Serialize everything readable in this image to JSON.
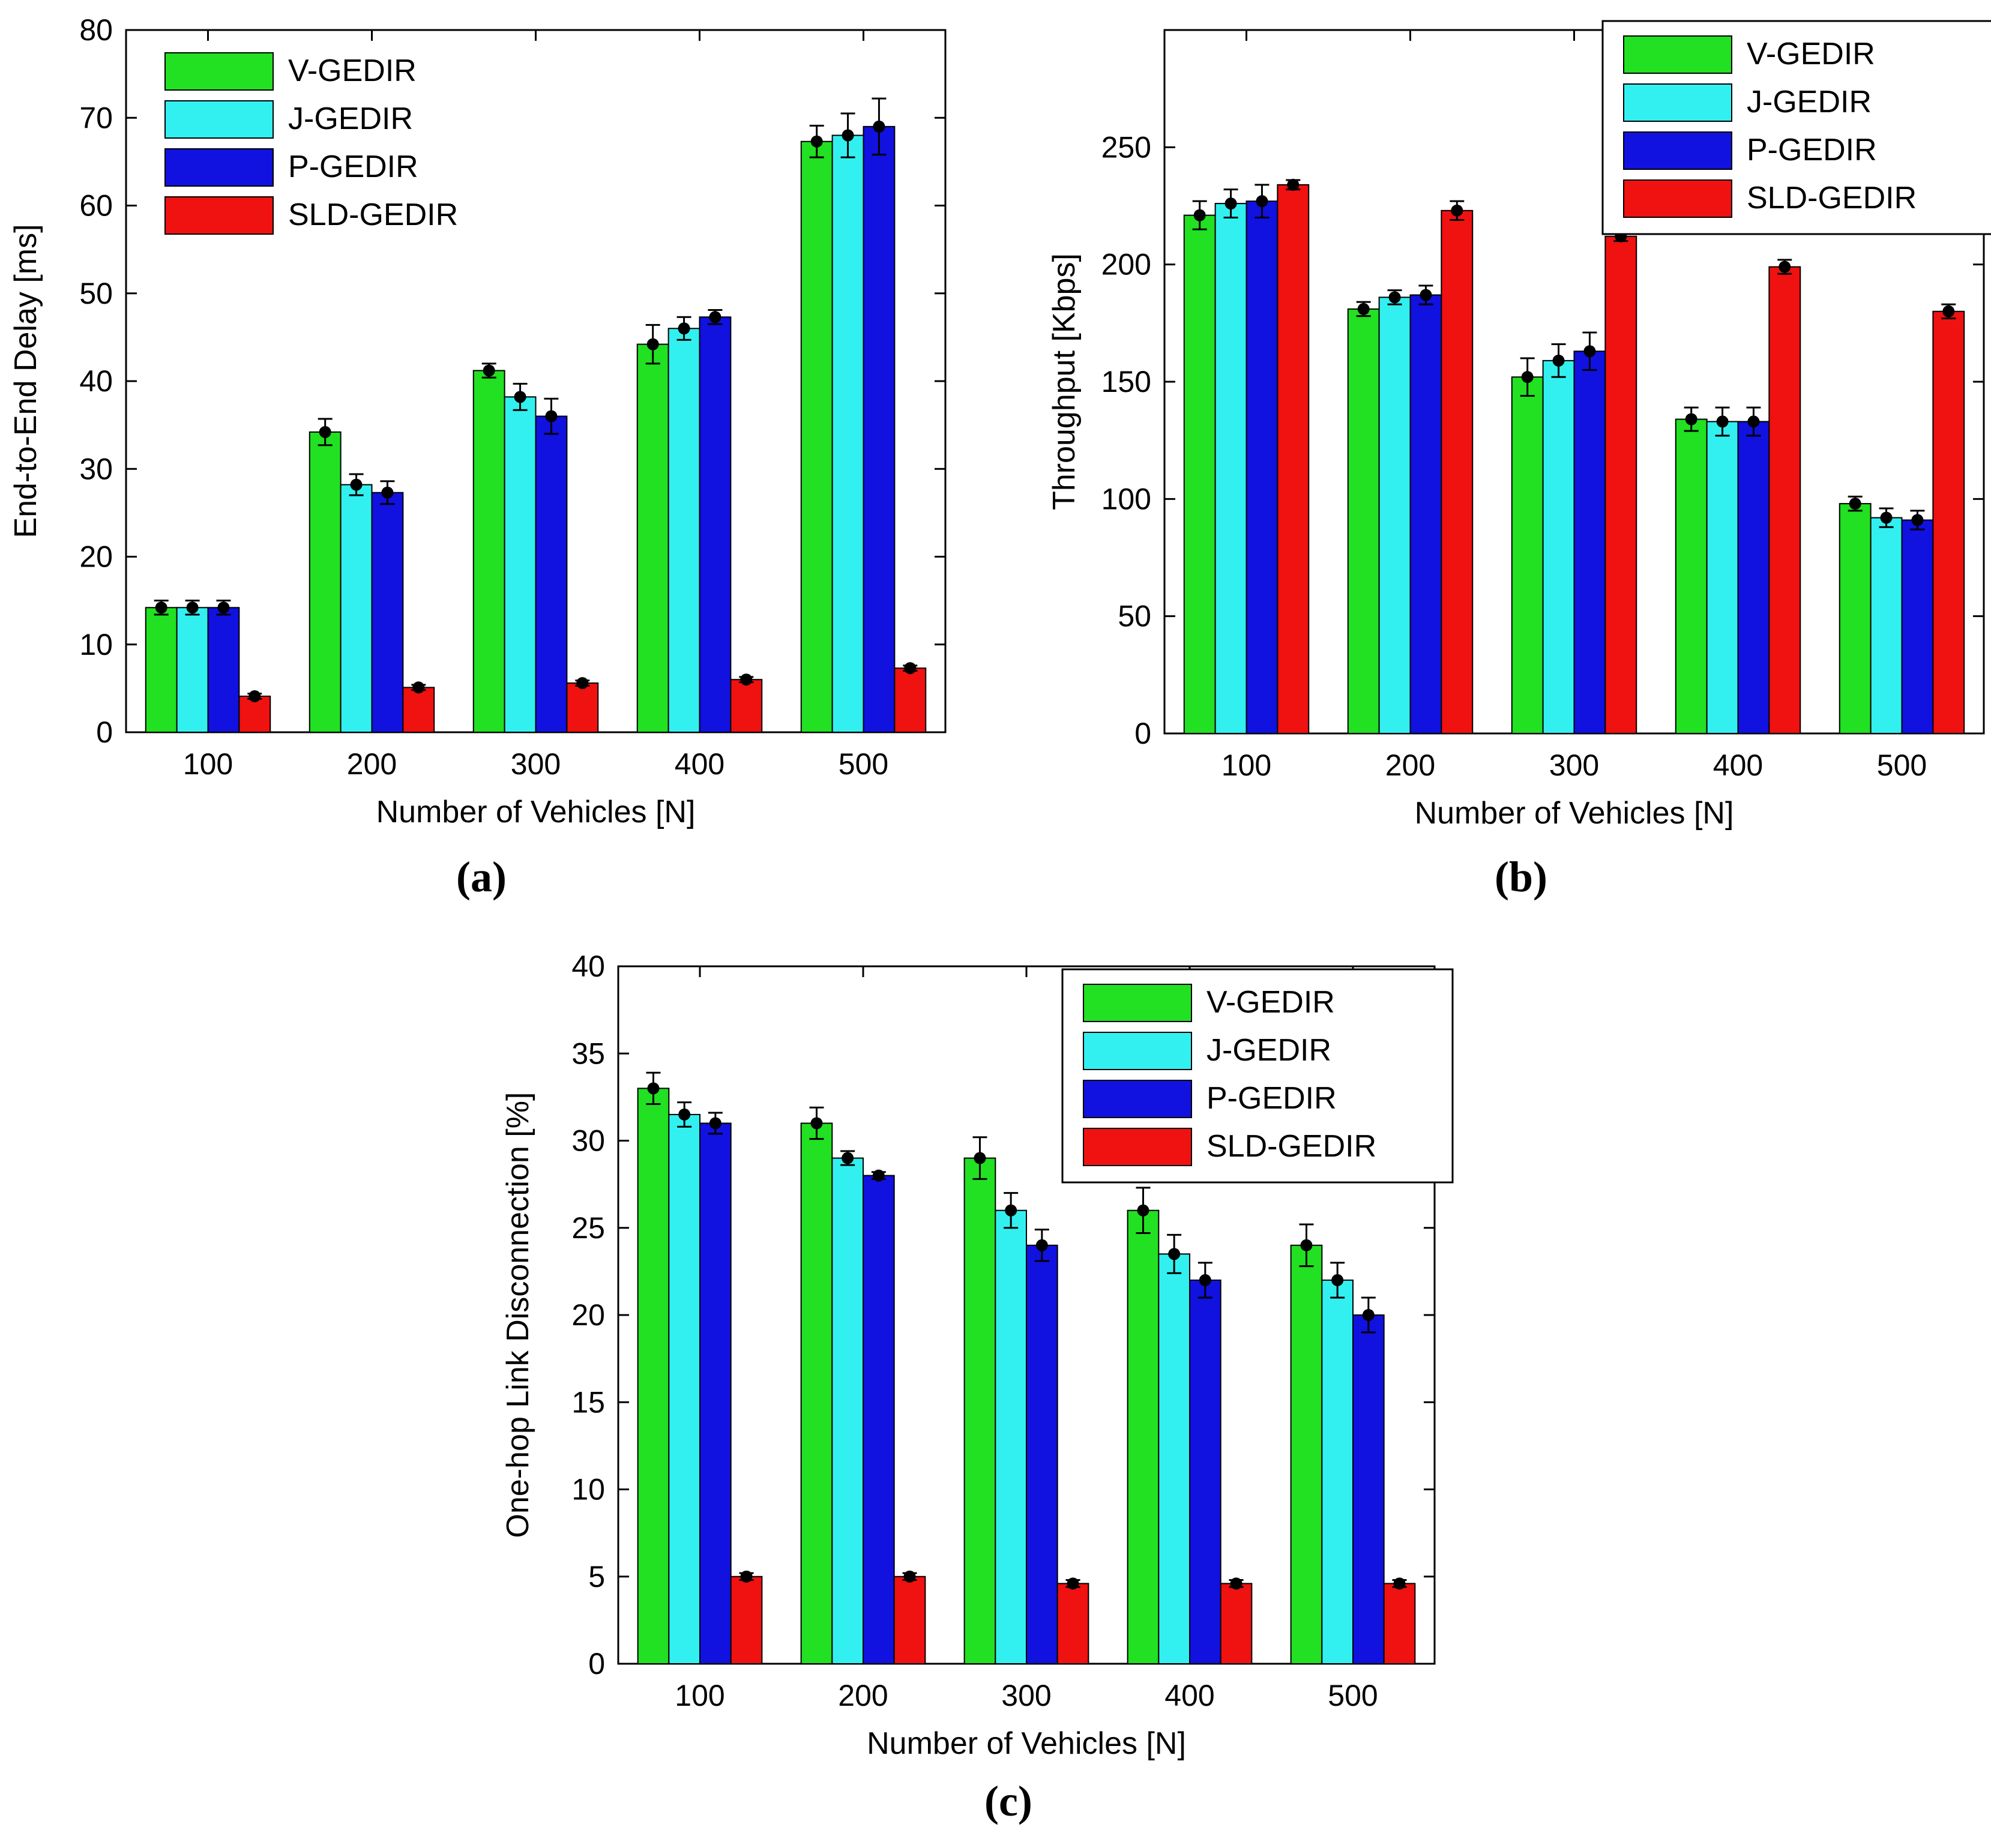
{
  "figure": {
    "captions": [
      "(a)",
      "(b)",
      "(c)"
    ]
  },
  "colors": {
    "V-GEDIR": "#22e022",
    "J-GEDIR": "#33f0f0",
    "P-GEDIR": "#1111e0",
    "SLD-GEDIR": "#f01111",
    "axis": "#000000",
    "errorbar": "#000000"
  },
  "chart_data": [
    {
      "id": "a",
      "type": "bar",
      "title": "",
      "xlabel": "Number of Vehicles [N]",
      "ylabel": "End-to-End Delay [ms]",
      "categories": [
        "100",
        "200",
        "300",
        "400",
        "500"
      ],
      "ylim": [
        0,
        80
      ],
      "yticks": [
        0,
        10,
        20,
        30,
        40,
        50,
        60,
        70,
        80
      ],
      "legend_position": "top-left",
      "series": [
        {
          "name": "V-GEDIR",
          "values": [
            14.2,
            34.2,
            41.2,
            44.2,
            67.3
          ],
          "errors": [
            0.8,
            1.5,
            0.8,
            2.2,
            1.8
          ]
        },
        {
          "name": "J-GEDIR",
          "values": [
            14.2,
            28.2,
            38.2,
            46.0,
            68.0
          ],
          "errors": [
            0.8,
            1.2,
            1.5,
            1.3,
            2.5
          ]
        },
        {
          "name": "P-GEDIR",
          "values": [
            14.2,
            27.3,
            36.0,
            47.3,
            69.0
          ],
          "errors": [
            0.8,
            1.3,
            2.0,
            0.8,
            3.2
          ]
        },
        {
          "name": "SLD-GEDIR",
          "values": [
            4.1,
            5.1,
            5.6,
            6.0,
            7.3
          ],
          "errors": [
            0.3,
            0.3,
            0.3,
            0.3,
            0.3
          ]
        }
      ]
    },
    {
      "id": "b",
      "type": "bar",
      "title": "",
      "xlabel": "Number of Vehicles [N]",
      "ylabel": "Throughput [Kbps]",
      "categories": [
        "100",
        "200",
        "300",
        "400",
        "500"
      ],
      "ylim": [
        0,
        300
      ],
      "yticks": [
        0,
        50,
        100,
        150,
        200,
        250
      ],
      "legend_position": "top-right",
      "series": [
        {
          "name": "V-GEDIR",
          "values": [
            221,
            181,
            152,
            134,
            98
          ],
          "errors": [
            6,
            3,
            8,
            5,
            3
          ]
        },
        {
          "name": "J-GEDIR",
          "values": [
            226,
            186,
            159,
            133,
            92
          ],
          "errors": [
            6,
            3,
            7,
            6,
            4
          ]
        },
        {
          "name": "P-GEDIR",
          "values": [
            227,
            187,
            163,
            133,
            91
          ],
          "errors": [
            7,
            4,
            8,
            6,
            4
          ]
        },
        {
          "name": "SLD-GEDIR",
          "values": [
            234,
            223,
            212,
            199,
            180
          ],
          "errors": [
            2,
            4,
            2,
            3,
            3
          ]
        }
      ]
    },
    {
      "id": "c",
      "type": "bar",
      "title": "",
      "xlabel": "Number of Vehicles [N]",
      "ylabel": "One-hop Link Disconnection [%]",
      "categories": [
        "100",
        "200",
        "300",
        "400",
        "500"
      ],
      "ylim": [
        0,
        40
      ],
      "yticks": [
        0,
        5,
        10,
        15,
        20,
        25,
        30,
        35,
        40
      ],
      "legend_position": "top-right",
      "series": [
        {
          "name": "V-GEDIR",
          "values": [
            33.0,
            31.0,
            29.0,
            26.0,
            24.0
          ],
          "errors": [
            0.9,
            0.9,
            1.2,
            1.3,
            1.2
          ]
        },
        {
          "name": "J-GEDIR",
          "values": [
            31.5,
            29.0,
            26.0,
            23.5,
            22.0
          ],
          "errors": [
            0.7,
            0.4,
            1.0,
            1.1,
            1.0
          ]
        },
        {
          "name": "P-GEDIR",
          "values": [
            31.0,
            28.0,
            24.0,
            22.0,
            20.0
          ],
          "errors": [
            0.6,
            0.2,
            0.9,
            1.0,
            1.0
          ]
        },
        {
          "name": "SLD-GEDIR",
          "values": [
            5.0,
            5.0,
            4.6,
            4.6,
            4.6
          ],
          "errors": [
            0.2,
            0.2,
            0.2,
            0.2,
            0.2
          ]
        }
      ]
    }
  ]
}
